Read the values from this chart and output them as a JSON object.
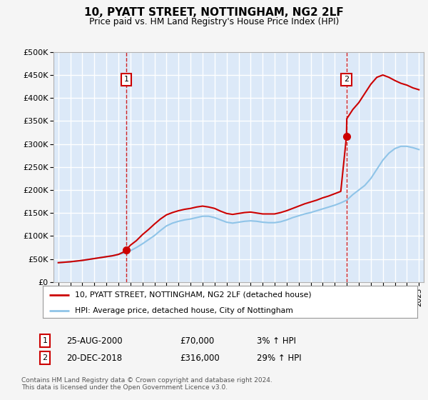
{
  "title": "10, PYATT STREET, NOTTINGHAM, NG2 2LF",
  "subtitle": "Price paid vs. HM Land Registry's House Price Index (HPI)",
  "legend_line1": "10, PYATT STREET, NOTTINGHAM, NG2 2LF (detached house)",
  "legend_line2": "HPI: Average price, detached house, City of Nottingham",
  "annotation1_date": "25-AUG-2000",
  "annotation1_price": "£70,000",
  "annotation1_hpi": "3% ↑ HPI",
  "annotation2_date": "20-DEC-2018",
  "annotation2_price": "£316,000",
  "annotation2_hpi": "29% ↑ HPI",
  "footnote": "Contains HM Land Registry data © Crown copyright and database right 2024.\nThis data is licensed under the Open Government Licence v3.0.",
  "background_color": "#dce9f8",
  "outer_bg_color": "#f5f5f5",
  "line_color_red": "#cc0000",
  "line_color_blue": "#8fc4e8",
  "grid_color": "#ffffff",
  "ylim": [
    0,
    500000
  ],
  "yticks": [
    0,
    50000,
    100000,
    150000,
    200000,
    250000,
    300000,
    350000,
    400000,
    450000,
    500000
  ],
  "ytick_labels": [
    "£0",
    "£50K",
    "£100K",
    "£150K",
    "£200K",
    "£250K",
    "£300K",
    "£350K",
    "£400K",
    "£450K",
    "£500K"
  ],
  "sale1_year": 2000.65,
  "sale1_value": 70000,
  "sale2_year": 2018.97,
  "sale2_value": 316000,
  "xlim_left": 1994.6,
  "xlim_right": 2025.4,
  "hpi_years": [
    1995,
    1995.5,
    1996,
    1996.5,
    1997,
    1997.5,
    1998,
    1998.5,
    1999,
    1999.5,
    2000,
    2000.5,
    2001,
    2001.5,
    2002,
    2002.5,
    2003,
    2003.5,
    2004,
    2004.5,
    2005,
    2005.5,
    2006,
    2006.5,
    2007,
    2007.5,
    2008,
    2008.5,
    2009,
    2009.5,
    2010,
    2010.5,
    2011,
    2011.5,
    2012,
    2012.5,
    2013,
    2013.5,
    2014,
    2014.5,
    2015,
    2015.5,
    2016,
    2016.5,
    2017,
    2017.5,
    2018,
    2018.5,
    2019,
    2019.5,
    2020,
    2020.5,
    2021,
    2021.5,
    2022,
    2022.5,
    2023,
    2023.5,
    2024,
    2024.5,
    2025
  ],
  "hpi_values": [
    42000,
    43000,
    44000,
    45500,
    47000,
    49000,
    51000,
    53000,
    55000,
    57000,
    60000,
    63000,
    68000,
    75000,
    83000,
    92000,
    101000,
    112000,
    122000,
    128000,
    132000,
    135000,
    137000,
    140000,
    143000,
    143000,
    140000,
    135000,
    130000,
    128000,
    130000,
    132000,
    133000,
    132000,
    130000,
    129000,
    129000,
    131000,
    135000,
    140000,
    144000,
    148000,
    151000,
    155000,
    159000,
    163000,
    167000,
    172000,
    178000,
    190000,
    200000,
    210000,
    225000,
    245000,
    265000,
    280000,
    290000,
    295000,
    295000,
    292000,
    288000
  ],
  "red_years": [
    1995,
    1995.5,
    1996,
    1996.5,
    1997,
    1997.5,
    1998,
    1998.5,
    1999,
    1999.5,
    2000,
    2000.5,
    2000.65,
    2001,
    2001.5,
    2002,
    2002.5,
    2003,
    2003.5,
    2004,
    2004.5,
    2005,
    2005.5,
    2006,
    2006.5,
    2007,
    2007.5,
    2008,
    2008.5,
    2009,
    2009.5,
    2010,
    2010.5,
    2011,
    2011.5,
    2012,
    2012.5,
    2013,
    2013.5,
    2014,
    2014.5,
    2015,
    2015.5,
    2016,
    2016.5,
    2017,
    2017.5,
    2018,
    2018.5,
    2018.97,
    2019,
    2019.5,
    2020,
    2020.5,
    2021,
    2021.5,
    2022,
    2022.5,
    2023,
    2023.5,
    2024,
    2024.5,
    2025
  ],
  "red_values": [
    42000,
    43000,
    44000,
    45500,
    47000,
    49000,
    51000,
    53000,
    55000,
    57000,
    60000,
    66000,
    70000,
    80000,
    90000,
    103000,
    114000,
    126000,
    137000,
    146000,
    151000,
    155000,
    158000,
    160000,
    163000,
    165000,
    163000,
    160000,
    154000,
    149000,
    147000,
    149000,
    151000,
    152000,
    150000,
    148000,
    148000,
    148000,
    151000,
    155000,
    160000,
    165000,
    170000,
    174000,
    178000,
    183000,
    187000,
    192000,
    197000,
    316000,
    355000,
    375000,
    390000,
    410000,
    430000,
    445000,
    450000,
    445000,
    438000,
    432000,
    428000,
    422000,
    418000
  ]
}
